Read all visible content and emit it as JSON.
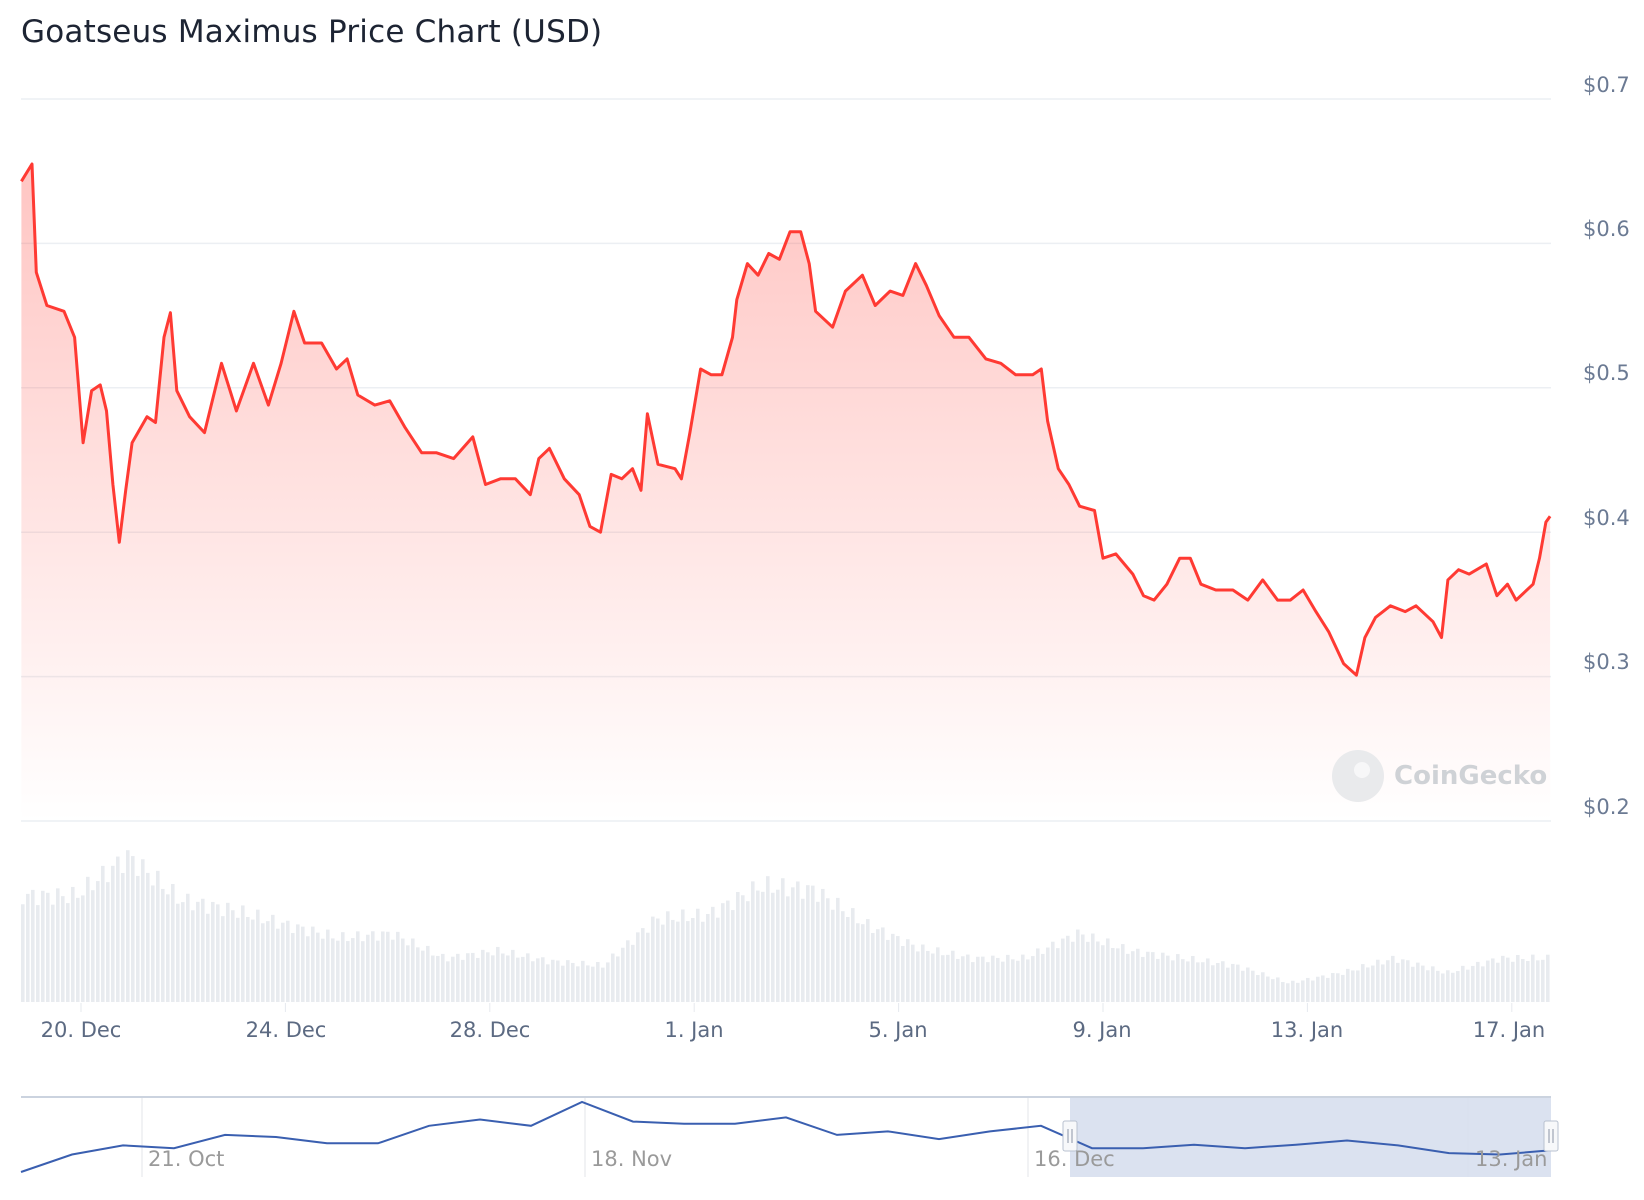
{
  "title": "Goatseus Maximus Price Chart (USD)",
  "watermark": "CoinGecko",
  "colors": {
    "line": "#ff3a33",
    "fill": "#ff5a50",
    "volume": "#e8ebef",
    "navigator_line": "#3a5fb0",
    "navigator_selection": "#d7dfee"
  },
  "chart_data": {
    "type": "line",
    "title": "Goatseus Maximus Price Chart (USD)",
    "ylim": [
      0.2,
      0.7
    ],
    "y_ticks": [
      "$0.7",
      "$0.6",
      "$0.5",
      "$0.4",
      "$0.3",
      "$0.2"
    ],
    "y_tick_values": [
      0.7,
      0.6,
      0.5,
      0.4,
      0.3,
      0.2
    ],
    "x_ticks": [
      "20. Dec",
      "24. Dec",
      "28. Dec",
      "1. Jan",
      "5. Jan",
      "9. Jan",
      "13. Jan",
      "17. Jan"
    ],
    "x_tick_dates": [
      "12-20 00",
      "12-24 00",
      "12-28 00",
      "01-01 00",
      "01-05 00",
      "01-09 00",
      "01-13 00",
      "01-17 00"
    ],
    "grid": true,
    "series": [
      {
        "points": [
          [
            "12-18 20",
            0.643
          ],
          [
            "12-19 01",
            0.655
          ],
          [
            "12-19 03",
            0.58
          ],
          [
            "12-19 08",
            0.557
          ],
          [
            "12-19 16",
            0.553
          ],
          [
            "12-19 21",
            0.535
          ],
          [
            "12-20 01",
            0.462
          ],
          [
            "12-20 05",
            0.498
          ],
          [
            "12-20 09",
            0.502
          ],
          [
            "12-20 12",
            0.484
          ],
          [
            "12-20 15",
            0.433
          ],
          [
            "12-20 18",
            0.393
          ],
          [
            "12-20 21",
            0.429
          ],
          [
            "12-21 00",
            0.462
          ],
          [
            "12-21 07",
            0.48
          ],
          [
            "12-21 11",
            0.476
          ],
          [
            "12-21 15",
            0.535
          ],
          [
            "12-21 18",
            0.552
          ],
          [
            "12-21 21",
            0.498
          ],
          [
            "12-22 03",
            0.48
          ],
          [
            "12-22 10",
            0.469
          ],
          [
            "12-22 18",
            0.517
          ],
          [
            "12-23 01",
            0.484
          ],
          [
            "12-23 09",
            0.517
          ],
          [
            "12-23 16",
            0.488
          ],
          [
            "12-23 22",
            0.517
          ],
          [
            "12-24 04",
            0.553
          ],
          [
            "12-24 09",
            0.531
          ],
          [
            "12-24 17",
            0.531
          ],
          [
            "12-25 00",
            0.513
          ],
          [
            "12-25 05",
            0.52
          ],
          [
            "12-25 10",
            0.495
          ],
          [
            "12-25 18",
            0.488
          ],
          [
            "12-26 01",
            0.491
          ],
          [
            "12-26 08",
            0.473
          ],
          [
            "12-26 16",
            0.455
          ],
          [
            "12-26 23",
            0.455
          ],
          [
            "12-27 07",
            0.451
          ],
          [
            "12-27 16",
            0.466
          ],
          [
            "12-27 22",
            0.433
          ],
          [
            "12-28 05",
            0.437
          ],
          [
            "12-28 12",
            0.437
          ],
          [
            "12-28 19",
            0.426
          ],
          [
            "12-28 23",
            0.451
          ],
          [
            "12-29 04",
            0.458
          ],
          [
            "12-29 11",
            0.437
          ],
          [
            "12-29 18",
            0.426
          ],
          [
            "12-29 23",
            0.404
          ],
          [
            "12-30 04",
            0.4
          ],
          [
            "12-30 09",
            0.44
          ],
          [
            "12-30 14",
            0.437
          ],
          [
            "12-30 19",
            0.444
          ],
          [
            "12-30 23",
            0.429
          ],
          [
            "12-31 02",
            0.482
          ],
          [
            "12-31 07",
            0.447
          ],
          [
            "12-31 15",
            0.444
          ],
          [
            "12-31 18",
            0.437
          ],
          [
            "12-31 22",
            0.469
          ],
          [
            "01-01 03",
            0.513
          ],
          [
            "01-01 08",
            0.509
          ],
          [
            "01-01 13",
            0.509
          ],
          [
            "01-01 18",
            0.535
          ],
          [
            "01-01 20",
            0.561
          ],
          [
            "01-02 01",
            0.586
          ],
          [
            "01-02 06",
            0.578
          ],
          [
            "01-02 11",
            0.593
          ],
          [
            "01-02 16",
            0.589
          ],
          [
            "01-02 21",
            0.608
          ],
          [
            "01-03 02",
            0.608
          ],
          [
            "01-03 06",
            0.586
          ],
          [
            "01-03 09",
            0.553
          ],
          [
            "01-03 17",
            0.542
          ],
          [
            "01-03 23",
            0.567
          ],
          [
            "01-04 07",
            0.578
          ],
          [
            "01-04 13",
            0.557
          ],
          [
            "01-04 20",
            0.567
          ],
          [
            "01-05 02",
            0.564
          ],
          [
            "01-05 08",
            0.586
          ],
          [
            "01-05 13",
            0.571
          ],
          [
            "01-05 19",
            0.55
          ],
          [
            "01-06 02",
            0.535
          ],
          [
            "01-06 09",
            0.535
          ],
          [
            "01-06 17",
            0.52
          ],
          [
            "01-07 00",
            0.517
          ],
          [
            "01-07 07",
            0.509
          ],
          [
            "01-07 15",
            0.509
          ],
          [
            "01-07 19",
            0.513
          ],
          [
            "01-07 22",
            0.477
          ],
          [
            "01-08 03",
            0.444
          ],
          [
            "01-08 08",
            0.433
          ],
          [
            "01-08 13",
            0.418
          ],
          [
            "01-08 20",
            0.415
          ],
          [
            "01-09 00",
            0.382
          ],
          [
            "01-09 06",
            0.385
          ],
          [
            "01-09 14",
            0.371
          ],
          [
            "01-09 19",
            0.356
          ],
          [
            "01-10 00",
            0.353
          ],
          [
            "01-10 06",
            0.364
          ],
          [
            "01-10 12",
            0.382
          ],
          [
            "01-10 17",
            0.382
          ],
          [
            "01-10 22",
            0.364
          ],
          [
            "01-11 05",
            0.36
          ],
          [
            "01-11 13",
            0.36
          ],
          [
            "01-11 20",
            0.353
          ],
          [
            "01-12 03",
            0.367
          ],
          [
            "01-12 10",
            0.353
          ],
          [
            "01-12 16",
            0.353
          ],
          [
            "01-12 22",
            0.36
          ],
          [
            "01-13 04",
            0.345
          ],
          [
            "01-13 10",
            0.331
          ],
          [
            "01-13 17",
            0.309
          ],
          [
            "01-13 23",
            0.301
          ],
          [
            "01-14 03",
            0.327
          ],
          [
            "01-14 08",
            0.341
          ],
          [
            "01-14 15",
            0.349
          ],
          [
            "01-14 22",
            0.345
          ],
          [
            "01-15 03",
            0.349
          ],
          [
            "01-15 11",
            0.338
          ],
          [
            "01-15 15",
            0.327
          ],
          [
            "01-15 18",
            0.367
          ],
          [
            "01-15 23",
            0.374
          ],
          [
            "01-16 04",
            0.371
          ],
          [
            "01-16 12",
            0.378
          ],
          [
            "01-16 17",
            0.356
          ],
          [
            "01-16 22",
            0.364
          ],
          [
            "01-17 02",
            0.353
          ],
          [
            "01-17 10",
            0.364
          ],
          [
            "01-17 13",
            0.382
          ],
          [
            "01-17 16",
            0.407
          ],
          [
            "01-17 18",
            0.411
          ]
        ]
      }
    ],
    "volume_relative": [
      0.73,
      0.73,
      1.0,
      0.7,
      0.63,
      0.53,
      0.44,
      0.47,
      0.3,
      0.35,
      0.28,
      0.25,
      0.57,
      0.6,
      0.8,
      0.77,
      0.53,
      0.37,
      0.3,
      0.3,
      0.47,
      0.35,
      0.3,
      0.25,
      0.13,
      0.2,
      0.3,
      0.2,
      0.3,
      0.3
    ]
  },
  "navigator": {
    "labels": [
      "21. Oct",
      "18. Nov",
      "16. Dec",
      "13. Jan"
    ],
    "values_relative": [
      0,
      0.25,
      0.38,
      0.34,
      0.53,
      0.5,
      0.41,
      0.41,
      0.66,
      0.75,
      0.66,
      1.0,
      0.72,
      0.69,
      0.69,
      0.78,
      0.53,
      0.58,
      0.47,
      0.58,
      0.66,
      0.34,
      0.34,
      0.39,
      0.34,
      0.39,
      0.45,
      0.38,
      0.27,
      0.25,
      0.31
    ]
  }
}
